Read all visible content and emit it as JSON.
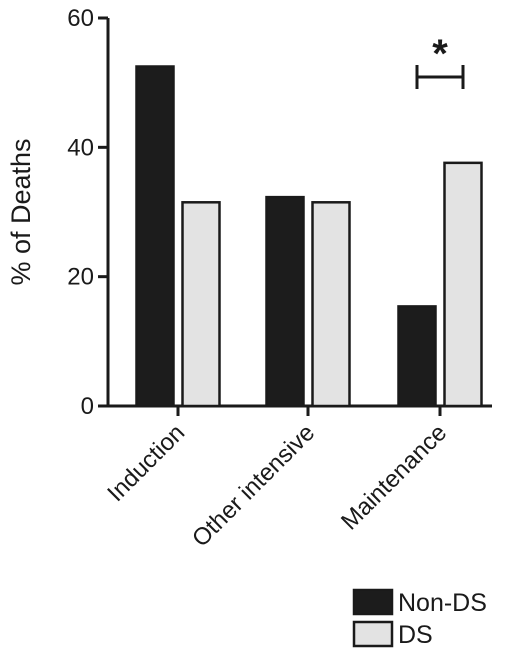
{
  "chart_data": {
    "type": "bar",
    "title": "",
    "xlabel": "",
    "ylabel": "% of Deaths",
    "ylim": [
      0,
      60
    ],
    "yticks": [
      0,
      20,
      40,
      60
    ],
    "categories": [
      "Induction",
      "Other intensive",
      "Maintenance"
    ],
    "series": [
      {
        "name": "Non-DS",
        "values": [
          52.5,
          32.3,
          15.4
        ],
        "color": "#1c1c1c"
      },
      {
        "name": "DS",
        "values": [
          31.5,
          31.5,
          37.6
        ],
        "color": "#e3e3e3"
      }
    ],
    "legend_position": "bottom-right",
    "grid": false,
    "annotation": {
      "text": "*",
      "category": "Maintenance",
      "type": "significance-bracket"
    }
  }
}
